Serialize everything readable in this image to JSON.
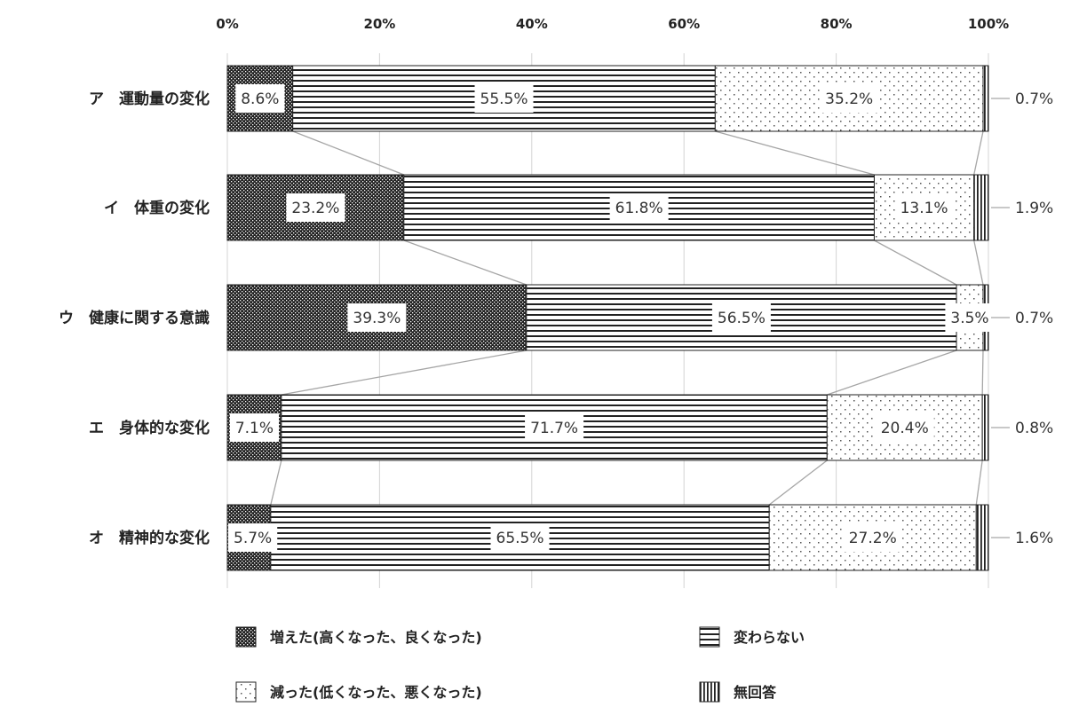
{
  "chart_data": {
    "type": "bar",
    "orientation": "horizontal",
    "stacked": "percent",
    "x_ticks": [
      "0%",
      "20%",
      "40%",
      "60%",
      "80%",
      "100%"
    ],
    "xlim": [
      0,
      100
    ],
    "grid": true,
    "legend_position": "bottom",
    "categories": [
      "ア　運動量の変化",
      "イ　体重の変化",
      "ウ　健康に関する意識",
      "エ　身体的な変化",
      "オ　精神的な変化"
    ],
    "series": [
      {
        "name": "増えた(高くなった、良くなった)",
        "pattern": "dense-dots",
        "values": [
          8.6,
          23.2,
          39.3,
          7.1,
          5.7
        ],
        "labels": [
          "8.6%",
          "23.2%",
          "39.3%",
          "7.1%",
          "5.7%"
        ]
      },
      {
        "name": "変わらない",
        "pattern": "horizontal-lines",
        "values": [
          55.5,
          61.8,
          56.5,
          71.7,
          65.5
        ],
        "labels": [
          "55.5%",
          "61.8%",
          "56.5%",
          "71.7%",
          "65.5%"
        ]
      },
      {
        "name": "減った(低くなった、悪くなった)",
        "pattern": "sparse-dots",
        "values": [
          35.2,
          13.1,
          3.5,
          20.4,
          27.2
        ],
        "labels": [
          "35.2%",
          "13.1%",
          "3.5%",
          "20.4%",
          "27.2%"
        ]
      },
      {
        "name": "無回答",
        "pattern": "vertical-lines",
        "values": [
          0.7,
          1.9,
          0.7,
          0.8,
          1.6
        ],
        "labels": [
          "0.7%",
          "1.9%",
          "0.7%",
          "0.8%",
          "1.6%"
        ]
      }
    ]
  }
}
